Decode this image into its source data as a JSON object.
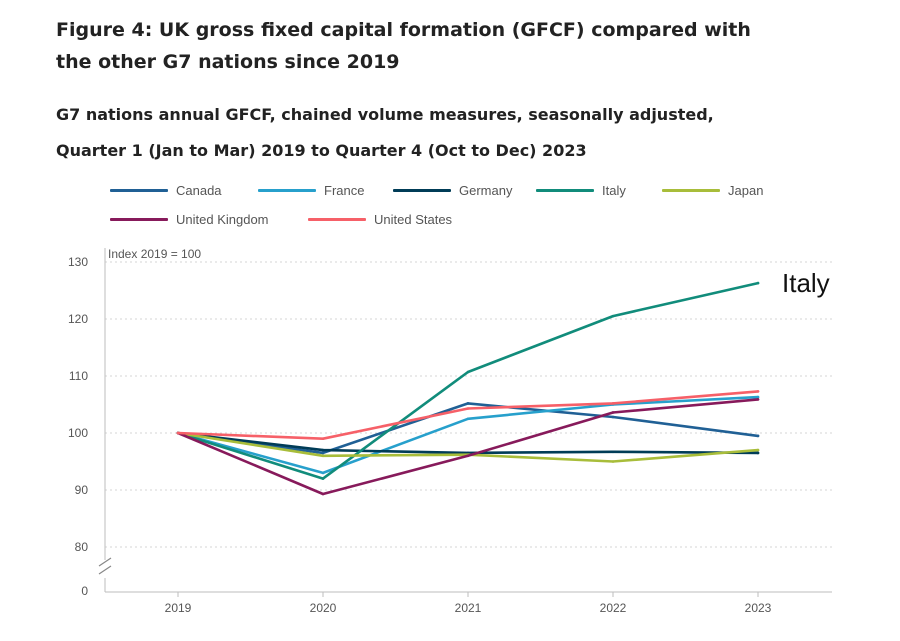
{
  "figure": {
    "title_line1": "Figure 4: UK gross fixed capital formation (GFCF) compared with",
    "title_line2": "the other G7 nations since 2019",
    "subtitle_line1": "G7 nations annual GFCF, chained volume measures, seasonally adjusted,",
    "subtitle_line2": "Quarter 1 (Jan to Mar) 2019 to Quarter 4 (Oct to Dec) 2023"
  },
  "chart_data": {
    "type": "line",
    "title": "G7 nations annual GFCF, chained volume measures, seasonally adjusted",
    "ylabel": "Index 2019 = 100",
    "xlabel": "",
    "x": [
      "2019",
      "2020",
      "2021",
      "2022",
      "2023"
    ],
    "yticks": [
      0,
      80,
      90,
      100,
      110,
      120,
      130
    ],
    "ylim": [
      80,
      130
    ],
    "axis_break": true,
    "grid": true,
    "annotation": "Italy",
    "series": [
      {
        "name": "Canada",
        "color": "#206095",
        "values": [
          100,
          96.5,
          105.2,
          102.8,
          99.5
        ]
      },
      {
        "name": "France",
        "color": "#27a0cc",
        "values": [
          100,
          93,
          102.5,
          105,
          106.3
        ]
      },
      {
        "name": "Germany",
        "color": "#003c57",
        "values": [
          100,
          97,
          96.5,
          96.7,
          96.5
        ]
      },
      {
        "name": "Italy",
        "color": "#118c7b",
        "values": [
          100,
          92,
          110.7,
          120.5,
          126.3
        ]
      },
      {
        "name": "Japan",
        "color": "#a8bd3a",
        "values": [
          100,
          96,
          96.2,
          95,
          97
        ]
      },
      {
        "name": "United Kingdom",
        "color": "#871a5b",
        "values": [
          100,
          89.3,
          96,
          103.6,
          105.9
        ]
      },
      {
        "name": "United States",
        "color": "#f66068",
        "values": [
          100,
          99,
          104.3,
          105.2,
          107.3
        ]
      }
    ]
  }
}
